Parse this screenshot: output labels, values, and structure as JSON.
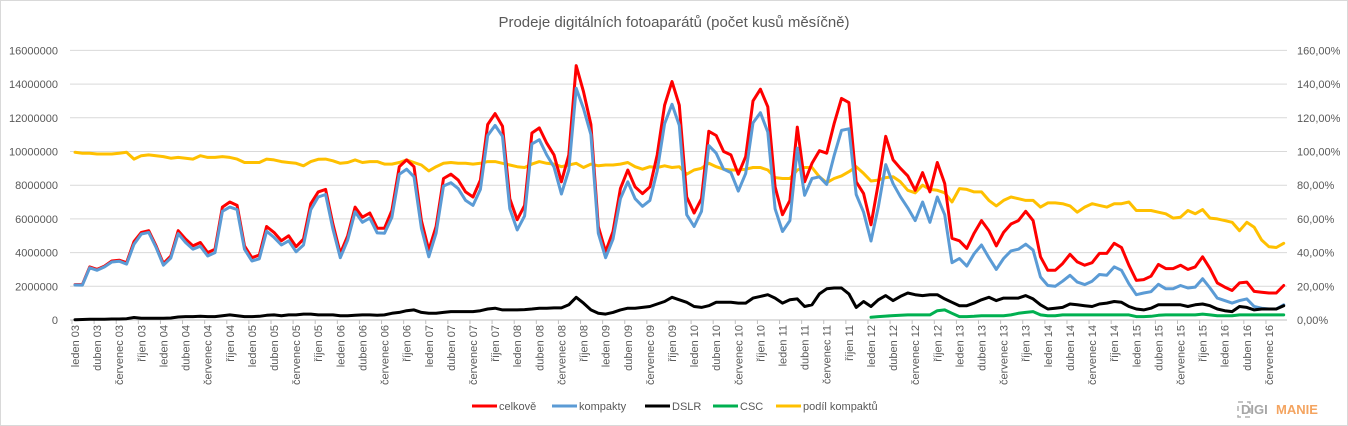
{
  "chart_data": {
    "type": "line",
    "title": "Prodeje digitálních fotoaparátů (počet kusů měsíčně)",
    "x_tick_labels": [
      "leden 03",
      "duben 03",
      "červenec 03",
      "říjen 03",
      "leden 04",
      "duben 04",
      "červenec 04",
      "říjen 04",
      "leden 05",
      "duben 05",
      "červenec 05",
      "říjen 05",
      "leden 06",
      "duben 06",
      "červenec 06",
      "říjen 06",
      "leden 07",
      "duben 07",
      "červenec 07",
      "říjen 07",
      "leden 08",
      "duben 08",
      "červenec 08",
      "říjen 08",
      "leden 09",
      "duben 09",
      "červenec 09",
      "říjen 09",
      "leden 10",
      "duben 10",
      "červenec 10",
      "říjen 10",
      "leden 11",
      "duben 11",
      "červenec 11",
      "říjen 11",
      "leden 12",
      "duben 12",
      "červenec 12",
      "říjen 12",
      "leden 13",
      "duben 13",
      "červenec 13",
      "říjen 13",
      "leden 14",
      "duben 14",
      "červenec 14",
      "říjen 14",
      "leden 15",
      "duben 15",
      "červenec 15",
      "říjen 15",
      "leden 16",
      "duben 16",
      "červenec 16"
    ],
    "y_left": {
      "min": 0,
      "max": 16000000,
      "ticks": [
        "0",
        "2000000",
        "4000000",
        "6000000",
        "8000000",
        "10000000",
        "12000000",
        "14000000",
        "16000000"
      ]
    },
    "y_right": {
      "min": 0,
      "max": 160,
      "ticks": [
        "0,00%",
        "20,00%",
        "40,00%",
        "60,00%",
        "80,00%",
        "100,00%",
        "120,00%",
        "140,00%",
        "160,00%"
      ]
    },
    "grid": true,
    "legend_position": "bottom",
    "series": [
      {
        "name": "celkově",
        "axis": "left",
        "color": "#ff0000",
        "values": [
          2100000,
          2100000,
          3150000,
          3000000,
          3200000,
          3500000,
          3550000,
          3400000,
          4650000,
          5200000,
          5300000,
          4400000,
          3350000,
          3800000,
          5300000,
          4800000,
          4400000,
          4600000,
          4000000,
          4200000,
          6700000,
          7000000,
          6800000,
          4400000,
          3700000,
          3850000,
          5550000,
          5200000,
          4700000,
          5000000,
          4350000,
          4800000,
          6900000,
          7600000,
          7750000,
          5700000,
          3950000,
          5000000,
          6700000,
          6100000,
          6350000,
          5450000,
          5450000,
          6500000,
          9100000,
          9500000,
          9100000,
          5900000,
          4150000,
          5550000,
          8400000,
          8650000,
          8300000,
          7600000,
          7300000,
          8300000,
          11600000,
          12250000,
          11500000,
          7200000,
          5950000,
          6800000,
          11100000,
          11400000,
          10500000,
          9800000,
          8200000,
          9800000,
          15100000,
          13550000,
          11600000,
          5550000,
          4050000,
          5250000,
          7800000,
          8900000,
          7900000,
          7500000,
          7900000,
          9800000,
          12750000,
          14150000,
          12750000,
          7300000,
          6350000,
          7200000,
          11200000,
          10950000,
          10000000,
          9800000,
          8650000,
          9700000,
          13000000,
          13700000,
          12650000,
          7900000,
          6250000,
          7100000,
          11450000,
          8200000,
          9300000,
          10050000,
          9900000,
          11650000,
          13150000,
          12900000,
          8200000,
          7500000,
          5650000,
          8100000,
          10900000,
          9500000,
          9000000,
          8550000,
          7700000,
          8750000,
          7600000,
          9350000,
          8100000,
          4850000,
          4700000,
          4250000,
          5150000,
          5900000,
          5300000,
          4400000,
          5200000,
          5700000,
          5900000,
          6450000,
          5900000,
          3750000,
          2950000,
          2950000,
          3350000,
          3900000,
          3450000,
          3250000,
          3400000,
          3950000,
          3950000,
          4550000,
          4300000,
          3250000,
          2350000,
          2400000,
          2600000,
          3300000,
          3050000,
          3050000,
          3250000,
          3000000,
          3150000,
          3750000,
          3050000,
          2200000,
          1950000,
          1750000,
          2200000,
          2250000,
          1700000,
          1650000,
          1600000,
          1600000,
          2050000
        ]
      },
      {
        "name": "kompakty",
        "axis": "left",
        "color": "#5b9bd5",
        "values": [
          2080000,
          2070000,
          3100000,
          2950000,
          3150000,
          3440000,
          3490000,
          3320000,
          4500000,
          5100000,
          5200000,
          4300000,
          3250000,
          3680000,
          5120000,
          4600000,
          4200000,
          4380000,
          3800000,
          4000000,
          6450000,
          6700000,
          6550000,
          4200000,
          3500000,
          3630000,
          5270000,
          4900000,
          4450000,
          4700000,
          4050000,
          4450000,
          6550000,
          7300000,
          7450000,
          5400000,
          3700000,
          4750000,
          6420000,
          5800000,
          6050000,
          5170000,
          5150000,
          6100000,
          8650000,
          8950000,
          8500000,
          5450000,
          3750000,
          5150000,
          7950000,
          8150000,
          7800000,
          7100000,
          6800000,
          7750000,
          10950000,
          11550000,
          10900000,
          6600000,
          5350000,
          6180000,
          10450000,
          10700000,
          9800000,
          9080000,
          7480000,
          8900000,
          13750000,
          12550000,
          11000000,
          5150000,
          3700000,
          4800000,
          7200000,
          8200000,
          7200000,
          6750000,
          7100000,
          8850000,
          11650000,
          12800000,
          11550000,
          6250000,
          5550000,
          6450000,
          10350000,
          9900000,
          8950000,
          8750000,
          7650000,
          8700000,
          11700000,
          12300000,
          11150000,
          6600000,
          5250000,
          5900000,
          10200000,
          7400000,
          8400000,
          8500000,
          8050000,
          9750000,
          11250000,
          11350000,
          7450000,
          6400000,
          4690000,
          6700000,
          9220000,
          8090000,
          7320000,
          6650000,
          5900000,
          7000000,
          5800000,
          7300000,
          6250000,
          3400000,
          3650000,
          3200000,
          3930000,
          4450000,
          3700000,
          3000000,
          3650000,
          4100000,
          4200000,
          4500000,
          4150000,
          2550000,
          2050000,
          2000000,
          2300000,
          2650000,
          2250000,
          2100000,
          2300000,
          2700000,
          2650000,
          3150000,
          2950000,
          2150000,
          1500000,
          1600000,
          1680000,
          2120000,
          1850000,
          1850000,
          2050000,
          1900000,
          1950000,
          2450000,
          1900000,
          1300000,
          1150000,
          1000000,
          1150000,
          1250000,
          800000,
          700000,
          650000,
          650000,
          900000
        ]
      },
      {
        "name": "DSLR",
        "axis": "left",
        "color": "#000000",
        "values": [
          20000,
          30000,
          50000,
          50000,
          50000,
          60000,
          60000,
          80000,
          150000,
          100000,
          100000,
          100000,
          100000,
          120000,
          180000,
          200000,
          200000,
          220000,
          200000,
          200000,
          250000,
          300000,
          250000,
          200000,
          200000,
          220000,
          280000,
          300000,
          250000,
          300000,
          300000,
          350000,
          350000,
          300000,
          300000,
          300000,
          250000,
          250000,
          280000,
          300000,
          300000,
          280000,
          300000,
          400000,
          450000,
          550000,
          600000,
          450000,
          400000,
          400000,
          450000,
          500000,
          500000,
          500000,
          500000,
          550000,
          650000,
          700000,
          600000,
          600000,
          600000,
          620000,
          650000,
          700000,
          700000,
          720000,
          720000,
          900000,
          1350000,
          1000000,
          600000,
          400000,
          350000,
          450000,
          600000,
          700000,
          700000,
          750000,
          800000,
          950000,
          1100000,
          1350000,
          1200000,
          1050000,
          800000,
          750000,
          850000,
          1050000,
          1050000,
          1050000,
          1000000,
          1000000,
          1300000,
          1400000,
          1500000,
          1300000,
          1000000,
          1200000,
          1250000,
          800000,
          900000,
          1550000,
          1850000,
          1900000,
          1900000,
          1550000,
          750000,
          1100000,
          800000,
          1200000,
          1450000,
          1150000,
          1400000,
          1600000,
          1500000,
          1450000,
          1500000,
          1500000,
          1250000,
          1050000,
          850000,
          850000,
          1000000,
          1200000,
          1350000,
          1150000,
          1300000,
          1300000,
          1300000,
          1450000,
          1250000,
          900000,
          650000,
          700000,
          750000,
          950000,
          900000,
          850000,
          800000,
          950000,
          1000000,
          1100000,
          1050000,
          800000,
          650000,
          600000,
          700000,
          900000,
          900000,
          900000,
          900000,
          800000,
          900000,
          950000,
          850000,
          650000,
          550000,
          500000,
          800000,
          750000,
          600000,
          650000,
          650000,
          650000,
          850000
        ]
      },
      {
        "name": "CSC",
        "axis": "left",
        "color": "#00b050",
        "values": [
          null,
          null,
          null,
          null,
          null,
          null,
          null,
          null,
          null,
          null,
          null,
          null,
          null,
          null,
          null,
          null,
          null,
          null,
          null,
          null,
          null,
          null,
          null,
          null,
          null,
          null,
          null,
          null,
          null,
          null,
          null,
          null,
          null,
          null,
          null,
          null,
          null,
          null,
          null,
          null,
          null,
          null,
          null,
          null,
          null,
          null,
          null,
          null,
          null,
          null,
          null,
          null,
          null,
          null,
          null,
          null,
          null,
          null,
          null,
          null,
          null,
          null,
          null,
          null,
          null,
          null,
          null,
          null,
          null,
          null,
          null,
          null,
          null,
          null,
          null,
          null,
          null,
          null,
          null,
          null,
          null,
          null,
          null,
          null,
          null,
          null,
          null,
          null,
          null,
          null,
          null,
          null,
          null,
          null,
          null,
          null,
          null,
          null,
          null,
          null,
          null,
          null,
          null,
          null,
          null,
          null,
          null,
          null,
          160000,
          200000,
          230000,
          260000,
          280000,
          300000,
          300000,
          300000,
          300000,
          550000,
          600000,
          400000,
          200000,
          200000,
          220000,
          250000,
          250000,
          250000,
          250000,
          300000,
          400000,
          450000,
          500000,
          300000,
          250000,
          250000,
          300000,
          300000,
          300000,
          300000,
          300000,
          300000,
          300000,
          300000,
          300000,
          300000,
          200000,
          200000,
          220000,
          280000,
          300000,
          300000,
          300000,
          300000,
          300000,
          350000,
          300000,
          250000,
          250000,
          250000,
          300000,
          300000,
          300000,
          300000,
          300000,
          300000,
          300000
        ]
      },
      {
        "name": "podíl kompaktů",
        "axis": "right",
        "color": "#ffc000",
        "values": [
          99.5,
          99,
          99,
          98.5,
          98.5,
          98.5,
          99,
          99.5,
          95.5,
          97.5,
          98,
          97.5,
          97,
          96,
          96.5,
          96,
          95.5,
          97.5,
          96.5,
          96.5,
          97,
          96.5,
          95.5,
          93.5,
          93.5,
          93.5,
          95.5,
          95,
          94,
          93.5,
          93,
          91.5,
          94,
          95.4,
          95.5,
          94.5,
          93,
          93.5,
          95,
          93.5,
          94,
          94,
          92.5,
          92.5,
          93.5,
          95,
          93.5,
          92,
          88.5,
          91,
          93,
          93.5,
          93,
          93,
          92.5,
          93,
          94,
          94,
          93,
          92,
          91,
          90.5,
          92.5,
          94,
          93,
          92.5,
          91,
          92,
          93,
          90.5,
          92.5,
          91.5,
          92,
          92,
          92.5,
          93.5,
          91,
          89.5,
          91,
          90.5,
          91.5,
          90.5,
          91,
          86.5,
          89,
          90,
          93,
          91,
          89.5,
          89,
          89,
          89.5,
          90.5,
          90.5,
          89,
          84.5,
          84,
          84,
          89,
          90.5,
          90.5,
          85,
          81.5,
          84,
          85.5,
          88,
          91,
          87,
          82.5,
          83,
          84.5,
          85,
          82,
          77,
          75.5,
          80,
          77.5,
          77,
          75.5,
          70,
          78,
          77.5,
          76,
          76,
          71,
          67.7,
          71,
          73,
          72,
          71,
          71,
          67,
          69.5,
          69.5,
          69,
          67.7,
          64,
          67,
          69,
          68,
          67,
          69,
          69,
          70,
          65,
          65,
          65,
          64,
          63,
          60.5,
          61,
          65,
          63,
          65.5,
          60.5,
          60,
          59,
          58,
          53,
          58,
          55,
          47.5,
          43.5,
          43,
          45.5
        ]
      }
    ]
  },
  "watermark": {
    "text": "DIGIMANIE",
    "part1": "DIGI",
    "part2": "MANIE"
  }
}
